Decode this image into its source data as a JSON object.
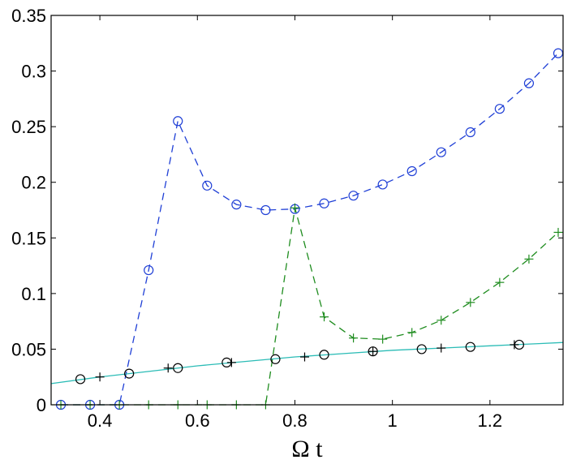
{
  "chart_data": {
    "type": "line",
    "title": "",
    "xlabel": "Ω t",
    "ylabel": "",
    "xlim": [
      0.3,
      1.35
    ],
    "ylim": [
      0,
      0.35
    ],
    "xticks": [
      0.4,
      0.6,
      0.8,
      1,
      1.2
    ],
    "xtick_labels": [
      "0.4",
      "0.6",
      "0.8",
      "1",
      "1.2"
    ],
    "yticks": [
      0,
      0.05,
      0.1,
      0.15,
      0.2,
      0.25,
      0.3,
      0.35
    ],
    "ytick_labels": [
      "0",
      "0.05",
      "0.1",
      "0.15",
      "0.2",
      "0.25",
      "0.3",
      "0.35"
    ],
    "grid": false,
    "legend": "none",
    "series": [
      {
        "color": "#1f3fd6",
        "line_style": "dashed",
        "marker": "circle",
        "x": [
          0.32,
          0.38,
          0.44,
          0.5,
          0.56,
          0.62,
          0.68,
          0.74,
          0.8,
          0.86,
          0.92,
          0.98,
          1.04,
          1.1,
          1.16,
          1.22,
          1.28,
          1.34
        ],
        "y": [
          0,
          0,
          0,
          0.121,
          0.255,
          0.197,
          0.18,
          0.175,
          0.176,
          0.181,
          0.188,
          0.198,
          0.21,
          0.227,
          0.245,
          0.266,
          0.289,
          0.316
        ]
      },
      {
        "color": "#1e8c1e",
        "line_style": "dashed",
        "marker": "plus",
        "x": [
          0.32,
          0.38,
          0.44,
          0.5,
          0.56,
          0.62,
          0.68,
          0.74,
          0.8,
          0.86,
          0.92,
          0.98,
          1.04,
          1.1,
          1.16,
          1.22,
          1.28,
          1.34
        ],
        "y": [
          0,
          0,
          0,
          0,
          0,
          0,
          0,
          0,
          0.177,
          0.079,
          0.06,
          0.059,
          0.065,
          0.076,
          0.092,
          0.11,
          0.131,
          0.155
        ]
      },
      {
        "color": "#2bbcb6",
        "line_style": "solid",
        "marker": "none",
        "x": [
          0.3,
          0.4,
          0.5,
          0.6,
          0.7,
          0.8,
          0.9,
          1.0,
          1.1,
          1.2,
          1.3,
          1.35
        ],
        "y": [
          0.019,
          0.025,
          0.03,
          0.035,
          0.039,
          0.043,
          0.046,
          0.049,
          0.051,
          0.053,
          0.055,
          0.056
        ]
      },
      {
        "color": "#000000",
        "line_style": "none",
        "marker": "circle",
        "x": [
          0.36,
          0.46,
          0.56,
          0.66,
          0.76,
          0.86,
          0.96,
          1.06,
          1.16,
          1.26
        ],
        "y": [
          0.023,
          0.028,
          0.033,
          0.038,
          0.041,
          0.045,
          0.048,
          0.05,
          0.052,
          0.054
        ]
      },
      {
        "color": "#000000",
        "line_style": "none",
        "marker": "plus",
        "x": [
          0.4,
          0.54,
          0.67,
          0.82,
          0.96,
          1.1,
          1.25
        ],
        "y": [
          0.025,
          0.033,
          0.038,
          0.043,
          0.048,
          0.051,
          0.054
        ]
      }
    ]
  }
}
